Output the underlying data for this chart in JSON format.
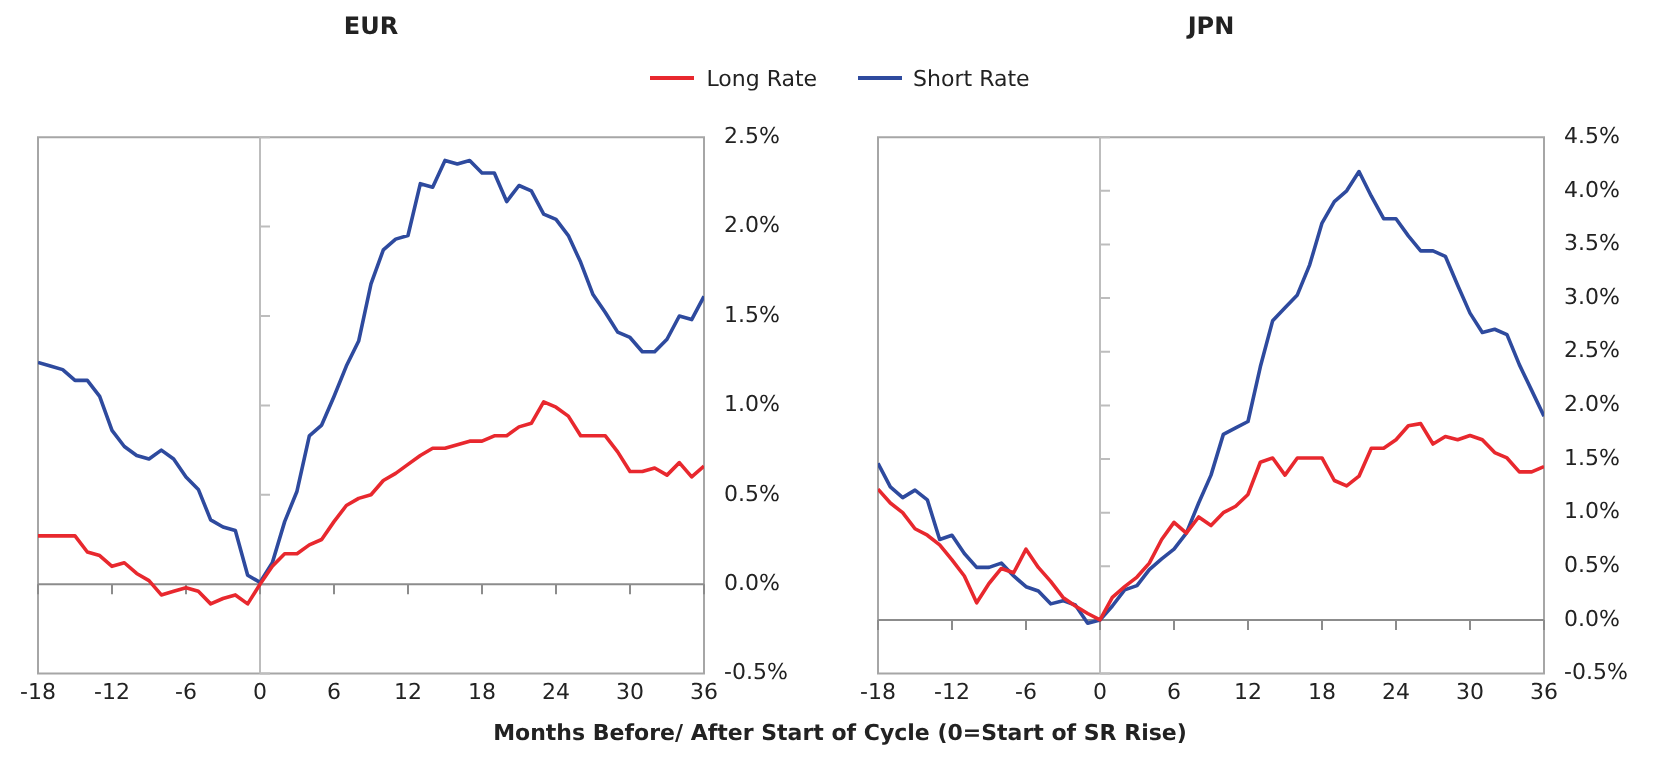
{
  "chart_data": [
    {
      "type": "line",
      "title": "EUR",
      "xlabel": "Months Before/ After Start of Cycle (0=Start of SR Rise)",
      "legend": "top",
      "grid": false,
      "marker": "none",
      "line_style": "solid",
      "x": [
        -18,
        -17,
        -16,
        -15,
        -14,
        -13,
        -12,
        -11,
        -10,
        -9,
        -8,
        -7,
        -6,
        -5,
        -4,
        -3,
        -2,
        -1,
        0,
        1,
        2,
        3,
        4,
        5,
        6,
        7,
        8,
        9,
        10,
        11,
        12,
        13,
        14,
        15,
        16,
        17,
        18,
        19,
        20,
        21,
        22,
        23,
        24,
        25,
        26,
        27,
        28,
        29,
        30,
        31,
        32,
        33,
        34,
        35,
        36
      ],
      "xlim": [
        -18,
        36
      ],
      "xticks": [
        -18,
        -12,
        -6,
        0,
        6,
        12,
        18,
        24,
        30,
        36
      ],
      "ylim": [
        -0.5,
        2.5
      ],
      "yticks": [
        {
          "value": -0.5,
          "label": "-0.5%"
        },
        {
          "value": 0,
          "label": "0.0%"
        },
        {
          "value": 0.5,
          "label": "0.5%"
        },
        {
          "value": 1,
          "label": "1.0%"
        },
        {
          "value": 1.5,
          "label": "1.5%"
        },
        {
          "value": 2,
          "label": "2.0%"
        },
        {
          "value": 2.5,
          "label": "2.5%"
        }
      ],
      "ref_lines": [
        {
          "axis": "x",
          "value": 0,
          "color": "#bdbdbd"
        },
        {
          "axis": "y",
          "value": 0,
          "color": "#8c8c8c"
        }
      ],
      "series": [
        {
          "name": "Long Rate",
          "color": "#e8282e",
          "values": [
            0.27,
            0.27,
            0.27,
            0.27,
            0.18,
            0.16,
            0.1,
            0.12,
            0.06,
            0.02,
            -0.06,
            -0.04,
            -0.02,
            -0.04,
            -0.11,
            -0.08,
            -0.06,
            -0.11,
            0,
            0.1,
            0.17,
            0.17,
            0.22,
            0.25,
            0.35,
            0.44,
            0.48,
            0.5,
            0.58,
            0.62,
            0.67,
            0.72,
            0.76,
            0.76,
            0.78,
            0.8,
            0.8,
            0.83,
            0.83,
            0.88,
            0.9,
            1.02,
            0.99,
            0.94,
            0.83,
            0.83,
            0.83,
            0.74,
            0.63,
            0.63,
            0.65,
            0.61,
            0.68,
            0.6,
            0.66
          ]
        },
        {
          "name": "Short Rate",
          "color": "#2e4a9e",
          "values": [
            1.24,
            1.22,
            1.2,
            1.14,
            1.14,
            1.05,
            0.86,
            0.77,
            0.72,
            0.7,
            0.75,
            0.7,
            0.6,
            0.53,
            0.36,
            0.32,
            0.3,
            0.05,
            0.01,
            0.12,
            0.35,
            0.52,
            0.83,
            0.89,
            1.05,
            1.22,
            1.36,
            1.68,
            1.87,
            1.93,
            1.95,
            2.24,
            2.22,
            2.37,
            2.35,
            2.37,
            2.3,
            2.3,
            2.14,
            2.23,
            2.2,
            2.07,
            2.04,
            1.95,
            1.8,
            1.62,
            1.52,
            1.41,
            1.38,
            1.3,
            1.3,
            1.37,
            1.5,
            1.48,
            1.61
          ]
        }
      ]
    },
    {
      "type": "line",
      "title": "JPN",
      "legend": "top",
      "grid": false,
      "marker": "none",
      "line_style": "solid",
      "x": [
        -18,
        -17,
        -16,
        -15,
        -14,
        -13,
        -12,
        -11,
        -10,
        -9,
        -8,
        -7,
        -6,
        -5,
        -4,
        -3,
        -2,
        -1,
        0,
        1,
        2,
        3,
        4,
        5,
        6,
        7,
        8,
        9,
        10,
        11,
        12,
        13,
        14,
        15,
        16,
        17,
        18,
        19,
        20,
        21,
        22,
        23,
        24,
        25,
        26,
        27,
        28,
        29,
        30,
        31,
        32,
        33,
        34,
        35,
        36
      ],
      "xlim": [
        -18,
        36
      ],
      "xticks": [
        -18,
        -12,
        -6,
        0,
        6,
        12,
        18,
        24,
        30,
        36
      ],
      "ylim": [
        -0.5,
        4.5
      ],
      "yticks": [
        {
          "value": -0.5,
          "label": "-0.5%"
        },
        {
          "value": 0,
          "label": "0.0%"
        },
        {
          "value": 0.5,
          "label": "0.5%"
        },
        {
          "value": 1,
          "label": "1.0%"
        },
        {
          "value": 1.5,
          "label": "1.5%"
        },
        {
          "value": 2,
          "label": "2.0%"
        },
        {
          "value": 2.5,
          "label": "2.5%"
        },
        {
          "value": 3,
          "label": "3.0%"
        },
        {
          "value": 3.5,
          "label": "3.5%"
        },
        {
          "value": 4,
          "label": "4.0%"
        },
        {
          "value": 4.5,
          "label": "4.5%"
        }
      ],
      "ref_lines": [
        {
          "axis": "x",
          "value": 0,
          "color": "#bdbdbd"
        },
        {
          "axis": "y",
          "value": 0,
          "color": "#8c8c8c"
        }
      ],
      "series": [
        {
          "name": "Long Rate",
          "color": "#e8282e",
          "values": [
            1.22,
            1.09,
            1.0,
            0.85,
            0.79,
            0.7,
            0.56,
            0.41,
            0.16,
            0.34,
            0.48,
            0.44,
            0.66,
            0.49,
            0.36,
            0.21,
            0.13,
            0.06,
            0,
            0.21,
            0.31,
            0.4,
            0.53,
            0.75,
            0.91,
            0.81,
            0.96,
            0.88,
            1.0,
            1.06,
            1.17,
            1.47,
            1.51,
            1.35,
            1.51,
            1.51,
            1.51,
            1.3,
            1.25,
            1.34,
            1.6,
            1.6,
            1.68,
            1.81,
            1.83,
            1.64,
            1.71,
            1.68,
            1.72,
            1.68,
            1.56,
            1.51,
            1.38,
            1.38,
            1.43
          ]
        },
        {
          "name": "Short Rate",
          "color": "#2e4a9e",
          "values": [
            1.46,
            1.24,
            1.14,
            1.21,
            1.12,
            0.75,
            0.79,
            0.62,
            0.49,
            0.49,
            0.53,
            0.41,
            0.31,
            0.27,
            0.15,
            0.18,
            0.14,
            -0.03,
            0,
            0.13,
            0.28,
            0.32,
            0.47,
            0.57,
            0.66,
            0.81,
            1.09,
            1.35,
            1.73,
            1.79,
            1.85,
            2.36,
            2.79,
            2.91,
            3.03,
            3.31,
            3.7,
            3.9,
            4.0,
            4.18,
            3.95,
            3.74,
            3.74,
            3.58,
            3.44,
            3.44,
            3.39,
            3.12,
            2.86,
            2.68,
            2.71,
            2.66,
            2.38,
            2.14,
            1.9
          ]
        }
      ]
    }
  ]
}
